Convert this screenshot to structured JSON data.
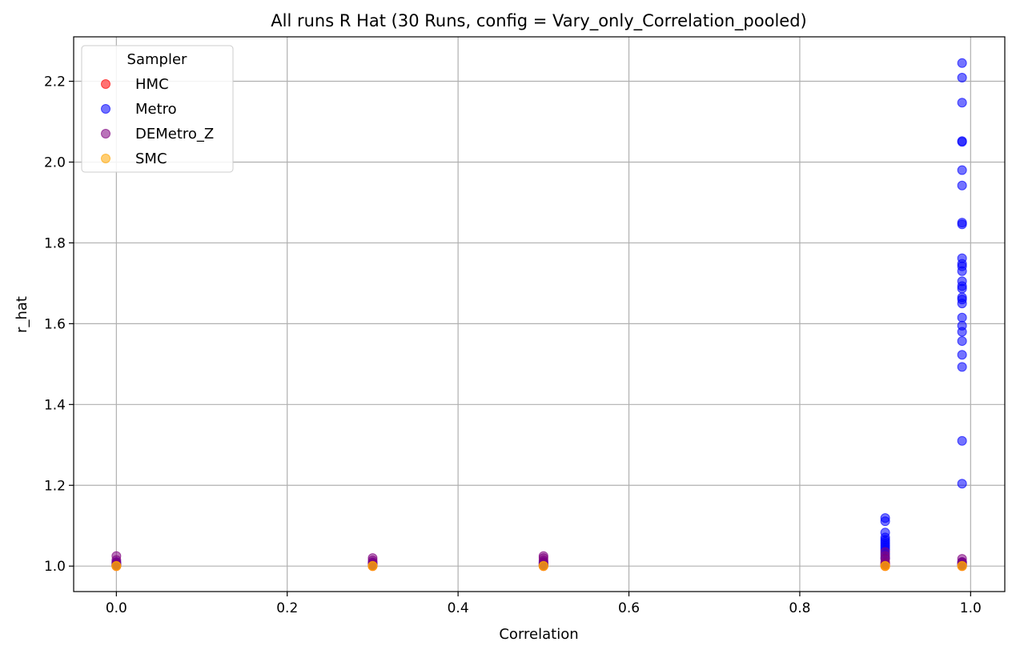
{
  "chart_data": {
    "type": "scatter",
    "title": "All runs R Hat (30 Runs, config = Vary_only_Correlation_pooled)",
    "xlabel": "Correlation",
    "ylabel": "r_hat",
    "xlim": [
      -0.05,
      1.04
    ],
    "ylim": [
      0.937,
      2.31
    ],
    "xticks": [
      0.0,
      0.2,
      0.4,
      0.6,
      0.8,
      1.0
    ],
    "xtick_labels": [
      "0.0",
      "0.2",
      "0.4",
      "0.6",
      "0.8",
      "1.0"
    ],
    "yticks": [
      1.0,
      1.2,
      1.4,
      1.6,
      1.8,
      2.0,
      2.2
    ],
    "ytick_labels": [
      "1.0",
      "1.2",
      "1.4",
      "1.6",
      "1.8",
      "2.0",
      "2.2"
    ],
    "grid": true,
    "legend": {
      "title": "Sampler",
      "position": "top-left"
    },
    "series": [
      {
        "name": "HMC",
        "color": "#ff0000",
        "x": [
          0.0,
          0.0,
          0.0,
          0.3,
          0.3,
          0.3,
          0.5,
          0.5,
          0.5,
          0.9,
          0.9,
          0.9,
          0.99,
          0.99,
          0.99
        ],
        "y": [
          1.0,
          1.002,
          1.004,
          1.0,
          1.002,
          1.004,
          1.0,
          1.002,
          1.005,
          1.0,
          1.003,
          1.006,
          1.0,
          1.004,
          1.008
        ]
      },
      {
        "name": "Metro",
        "color": "#0000ff",
        "x": [
          0.0,
          0.0,
          0.0,
          0.3,
          0.3,
          0.3,
          0.5,
          0.5,
          0.5,
          0.9,
          0.9,
          0.9,
          0.9,
          0.9,
          0.9,
          0.9,
          0.9,
          0.9,
          0.9,
          0.9,
          0.9,
          0.99,
          0.99,
          0.99,
          0.99,
          0.99,
          0.99,
          0.99,
          0.99,
          0.99,
          0.99,
          0.99,
          0.99,
          0.99,
          0.99,
          0.99,
          0.99,
          0.99,
          0.99,
          0.99,
          0.99,
          0.99,
          0.99,
          0.99,
          0.99,
          0.99,
          0.99,
          0.99,
          0.99,
          0.99,
          0.99
        ],
        "y": [
          1.002,
          1.006,
          1.01,
          1.002,
          1.005,
          1.009,
          1.002,
          1.006,
          1.01,
          1.119,
          1.111,
          1.083,
          1.071,
          1.065,
          1.06,
          1.055,
          1.05,
          1.045,
          1.04,
          1.03,
          1.02,
          2.245,
          2.209,
          2.147,
          2.052,
          2.05,
          1.98,
          1.942,
          1.85,
          1.846,
          1.762,
          1.748,
          1.742,
          1.73,
          1.705,
          1.693,
          1.687,
          1.665,
          1.66,
          1.65,
          1.615,
          1.595,
          1.58,
          1.557,
          1.523,
          1.493,
          1.31,
          1.204,
          1.01,
          1.005,
          1.002
        ]
      },
      {
        "name": "DEMetro_Z",
        "color": "#800080",
        "x": [
          0.0,
          0.0,
          0.0,
          0.0,
          0.3,
          0.3,
          0.3,
          0.3,
          0.5,
          0.5,
          0.5,
          0.5,
          0.5,
          0.9,
          0.9,
          0.9,
          0.9,
          0.9,
          0.99,
          0.99,
          0.99
        ],
        "y": [
          1.025,
          1.015,
          1.008,
          1.003,
          1.02,
          1.014,
          1.008,
          1.003,
          1.025,
          1.02,
          1.014,
          1.008,
          1.003,
          1.035,
          1.025,
          1.018,
          1.01,
          1.004,
          1.018,
          1.01,
          1.004
        ]
      },
      {
        "name": "SMC",
        "color": "#ffa500",
        "x": [
          0.0,
          0.0,
          0.3,
          0.3,
          0.5,
          0.5,
          0.9,
          0.9,
          0.99,
          0.99
        ],
        "y": [
          1.0,
          1.001,
          1.0,
          1.001,
          1.0,
          1.001,
          1.0,
          1.001,
          1.0,
          1.001
        ]
      }
    ]
  }
}
